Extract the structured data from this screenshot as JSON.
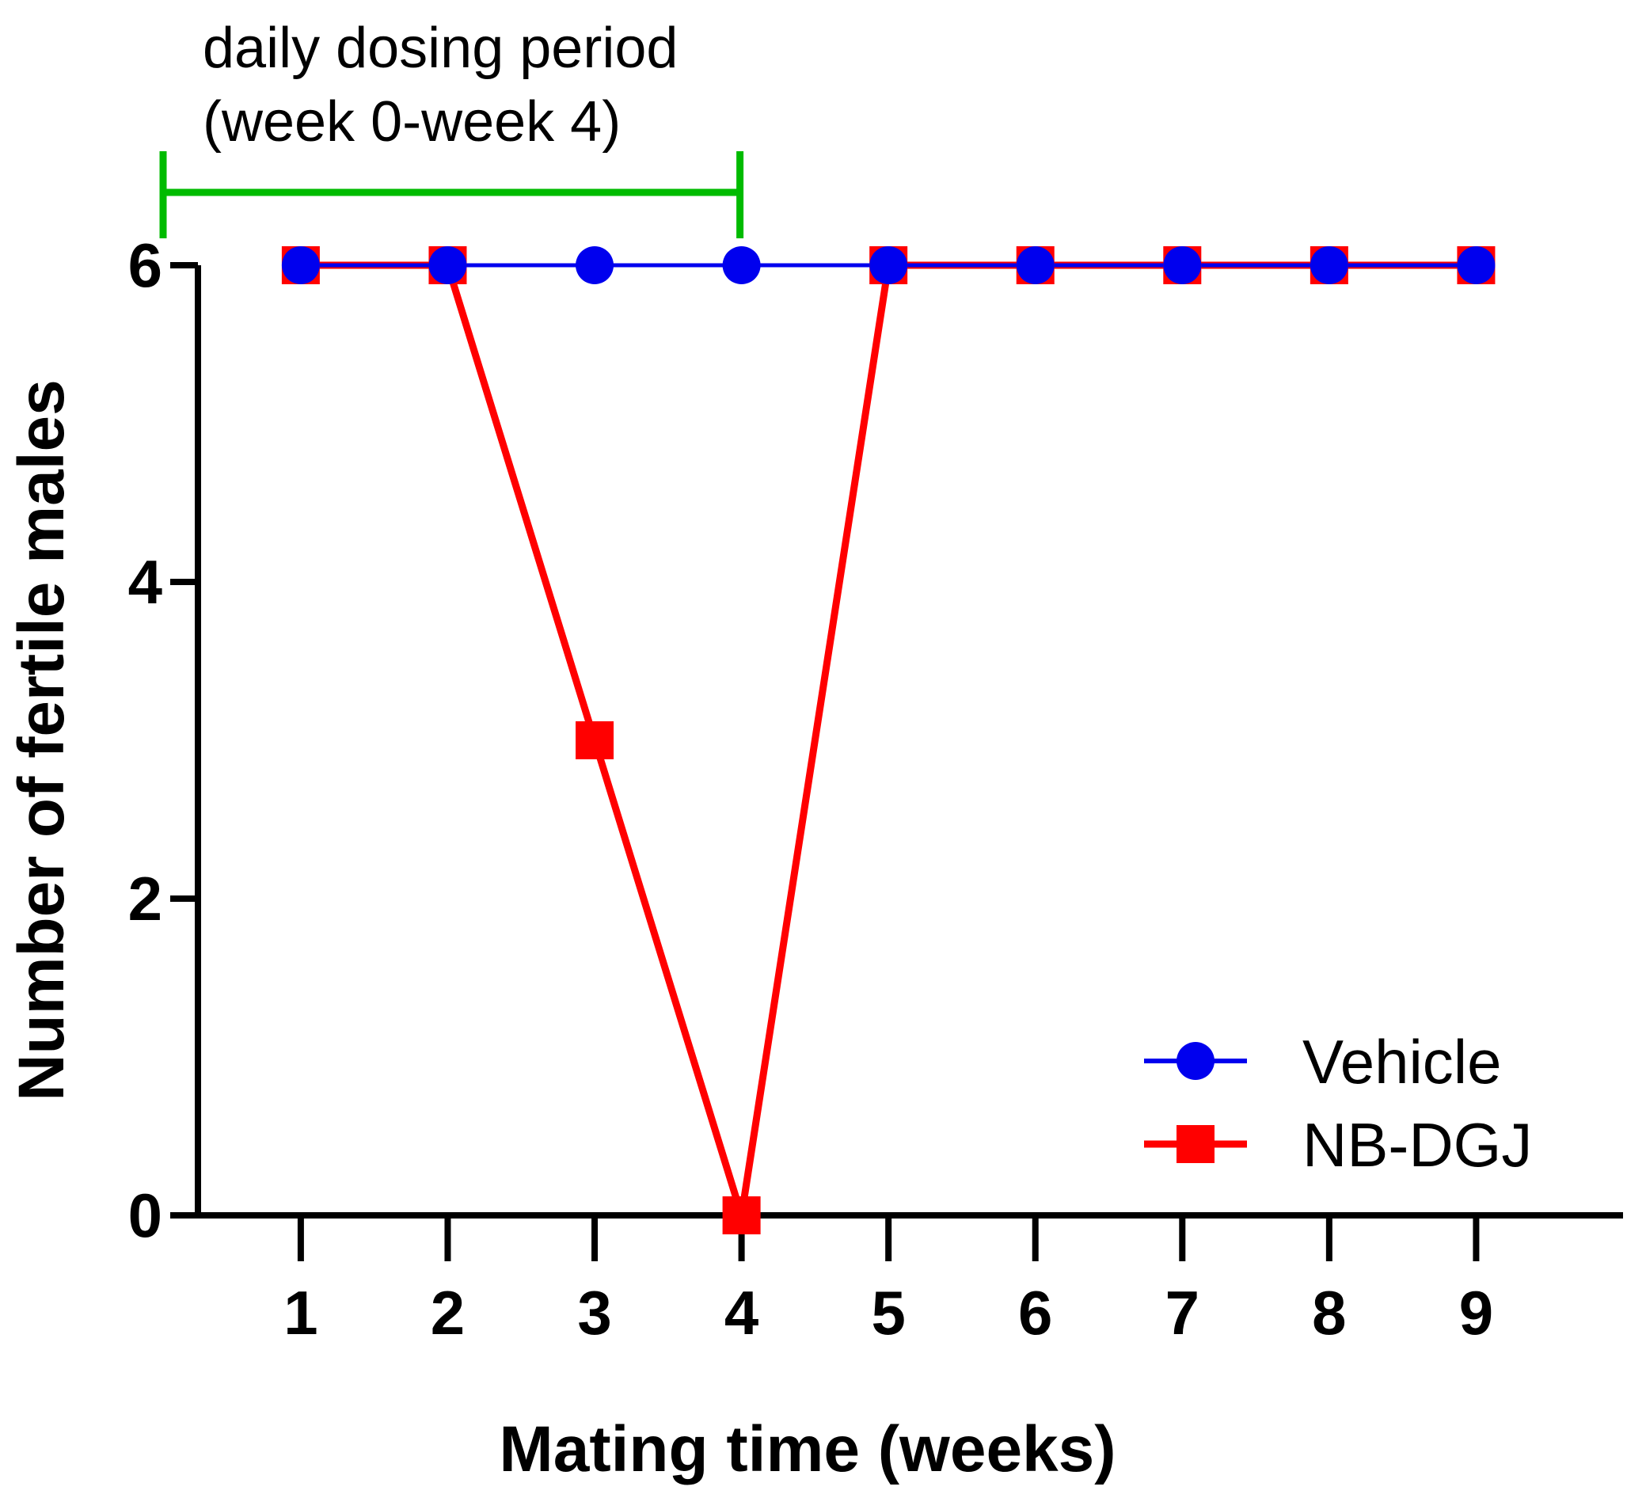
{
  "chart_data": {
    "type": "line",
    "title": "",
    "xlabel": "Mating time (weeks)",
    "ylabel": "Number of fertile males",
    "x": [
      1,
      2,
      3,
      4,
      5,
      6,
      7,
      8,
      9
    ],
    "x_tick_labels": [
      "1",
      "2",
      "3",
      "4",
      "5",
      "6",
      "7",
      "8",
      "9"
    ],
    "xlim": [
      0.3,
      10.0
    ],
    "y_ticks": [
      0,
      2,
      4,
      6
    ],
    "y_tick_labels": [
      "0",
      "2",
      "4",
      "6"
    ],
    "ylim": [
      0,
      6
    ],
    "grid": false,
    "legend_position": "bottom-right",
    "series": [
      {
        "name": "NB-DGJ",
        "color": "#ff0000",
        "marker": "square",
        "values": [
          6,
          6,
          3,
          0,
          6,
          6,
          6,
          6,
          6
        ]
      },
      {
        "name": "Vehicle",
        "color": "#0000ee",
        "marker": "circle",
        "values": [
          6,
          6,
          6,
          6,
          6,
          6,
          6,
          6,
          6
        ]
      }
    ],
    "legend_order": [
      "Vehicle",
      "NB-DGJ"
    ],
    "annotation": {
      "lines": [
        "daily dosing period",
        "(week 0-week 4)"
      ],
      "range_start_week": 0,
      "range_end_week": 4,
      "color": "#00bb00"
    }
  }
}
